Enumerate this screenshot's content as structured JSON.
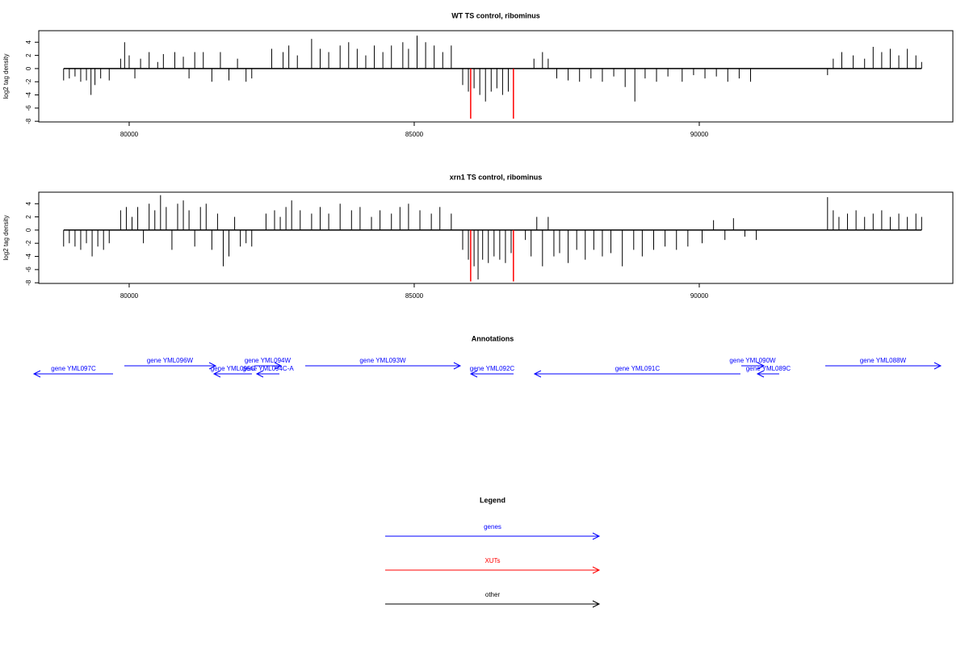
{
  "chart_data": [
    {
      "type": "bar",
      "title": "WT TS control, ribominus",
      "ylabel": "log2 tag density",
      "color": "#000000",
      "xlim": [
        78414,
        94448
      ],
      "ylim": [
        -8.1,
        5.75
      ],
      "xticks": [
        80000,
        85000,
        90000
      ],
      "yticks": [
        -8,
        -6,
        -4,
        -2,
        0,
        2,
        4
      ],
      "x": [
        78850,
        78950,
        79050,
        79150,
        79250,
        79330,
        79400,
        79500,
        79650,
        79850,
        79920,
        80000,
        80100,
        80200,
        80350,
        80500,
        80600,
        80800,
        80950,
        81050,
        81150,
        81300,
        81450,
        81600,
        81750,
        81900,
        82050,
        82150,
        82500,
        82700,
        82800,
        82950,
        83200,
        83350,
        83500,
        83700,
        83850,
        84000,
        84150,
        84300,
        84450,
        84600,
        84800,
        84900,
        85050,
        85200,
        85350,
        85500,
        85650,
        85850,
        85950,
        86050,
        86150,
        86250,
        86350,
        86450,
        86550,
        86650,
        87100,
        87250,
        87350,
        87500,
        87700,
        87900,
        88100,
        88300,
        88500,
        88700,
        88870,
        89050,
        89250,
        89450,
        89700,
        89900,
        90100,
        90300,
        90500,
        90700,
        90900,
        92250,
        92350,
        92500,
        92700,
        92900,
        93050,
        93200,
        93350,
        93500,
        93650,
        93800,
        93900
      ],
      "values": [
        -1.8,
        -1.5,
        -1.2,
        -2,
        -1.8,
        -4,
        -2.5,
        -1.5,
        -1.8,
        1.5,
        4,
        2,
        -1.5,
        1.5,
        2.5,
        1,
        2.2,
        2.5,
        1.8,
        -1.5,
        2.5,
        2.5,
        -2,
        2.5,
        -1.8,
        1.5,
        -2,
        -1.5,
        3,
        2.5,
        3.5,
        2,
        4.5,
        3,
        2.5,
        3.5,
        4,
        3,
        2,
        3.5,
        2.5,
        3.5,
        4,
        3,
        5,
        4,
        3.5,
        2.5,
        3.5,
        -2.5,
        -3.5,
        -3,
        -4,
        -5,
        -3.5,
        -3,
        -4,
        -3.5,
        1.5,
        2.5,
        1.5,
        -1.5,
        -1.8,
        -2,
        -1.5,
        -2,
        -1.2,
        -2.8,
        -5,
        -1.5,
        -2,
        -1.2,
        -2,
        -1,
        -1.5,
        -1.2,
        -2,
        -1.5,
        -2,
        -1,
        1.5,
        2.5,
        2,
        1.5,
        3.3,
        2.5,
        3,
        2,
        3,
        2,
        1
      ],
      "highlight": {
        "color": "#ff0000",
        "x": [
          85990,
          86740
        ],
        "values": [
          -7.6,
          -7.6
        ]
      }
    },
    {
      "type": "bar",
      "title": "xrn1 TS control, ribominus",
      "ylabel": "log2 tag density",
      "color": "#000000",
      "xlim": [
        78414,
        94448
      ],
      "ylim": [
        -8.1,
        5.75
      ],
      "xticks": [
        80000,
        85000,
        90000
      ],
      "yticks": [
        -8,
        -6,
        -4,
        -2,
        0,
        2,
        4
      ],
      "x": [
        78850,
        78950,
        79050,
        79150,
        79250,
        79350,
        79450,
        79550,
        79650,
        79850,
        79950,
        80050,
        80150,
        80250,
        80350,
        80450,
        80550,
        80650,
        80750,
        80850,
        80950,
        81050,
        81150,
        81250,
        81350,
        81450,
        81550,
        81650,
        81750,
        81850,
        81950,
        82050,
        82150,
        82400,
        82550,
        82650,
        82750,
        82850,
        83000,
        83200,
        83350,
        83500,
        83700,
        83900,
        84050,
        84250,
        84400,
        84600,
        84750,
        84900,
        85100,
        85300,
        85450,
        85650,
        85850,
        85950,
        86050,
        86120,
        86200,
        86300,
        86400,
        86500,
        86600,
        86700,
        86950,
        87050,
        87150,
        87250,
        87350,
        87450,
        87550,
        87700,
        87850,
        88000,
        88150,
        88300,
        88450,
        88650,
        88850,
        89000,
        89200,
        89400,
        89600,
        89800,
        90050,
        90250,
        90450,
        90600,
        90800,
        91000,
        92250,
        92350,
        92450,
        92600,
        92750,
        92900,
        93050,
        93200,
        93350,
        93500,
        93650,
        93800,
        93900
      ],
      "values": [
        -2.5,
        -2,
        -2.5,
        -3,
        -2,
        -4,
        -2.5,
        -3,
        -2,
        3,
        3.5,
        2,
        3.5,
        -2,
        4,
        3,
        5.3,
        3.5,
        -3,
        4,
        4.5,
        3,
        -2.5,
        3.5,
        4,
        -3,
        2.5,
        -5.5,
        -4,
        2,
        -2.5,
        -2,
        -2.5,
        2.5,
        3,
        2,
        3.5,
        4.5,
        3,
        2.5,
        3.5,
        2.5,
        4,
        3,
        3.5,
        2,
        3,
        2.5,
        3.5,
        4,
        3,
        2.5,
        3.5,
        2.5,
        -3,
        -4.5,
        -5.5,
        -7.5,
        -4.5,
        -5,
        -4,
        -4.5,
        -5,
        -3.5,
        -1.5,
        -4,
        2,
        -5.5,
        2,
        -4,
        -3.5,
        -5,
        -3,
        -4.5,
        -3,
        -4,
        -3.5,
        -5.5,
        -3,
        -4,
        -3,
        -2.5,
        -3,
        -2.5,
        -2,
        1.5,
        -1.5,
        1.8,
        -1,
        -1.5,
        5,
        3,
        2,
        2.5,
        3,
        2,
        2.5,
        3,
        2,
        2.5,
        2,
        2.5,
        2
      ],
      "highlight": {
        "color": "#ff0000",
        "x": [
          85990,
          86740
        ],
        "values": [
          -7.8,
          -7.8
        ]
      }
    }
  ],
  "annotations": {
    "title": "Annotations",
    "color": "#0000ff",
    "genes": [
      {
        "label": "gene YML097C",
        "start": 79717,
        "end": 78329
      },
      {
        "label": "gene YML096W",
        "start": 79915,
        "end": 81516
      },
      {
        "label": "gene YML095C",
        "start": 82153,
        "end": 81487
      },
      {
        "label": "gene YML094W",
        "start": 82195,
        "end": 82663
      },
      {
        "label": "gene YML094C-A",
        "start": 82635,
        "end": 82238
      },
      {
        "label": "gene YML093W",
        "start": 83088,
        "end": 85807
      },
      {
        "label": "gene YML092C",
        "start": 86742,
        "end": 85992
      },
      {
        "label": "gene YML091C",
        "start": 90722,
        "end": 87110
      },
      {
        "label": "gene YML090W",
        "start": 90737,
        "end": 91133
      },
      {
        "label": "gene YML089C",
        "start": 91402,
        "end": 91020
      },
      {
        "label": "gene YML088W",
        "start": 92210,
        "end": 94235
      }
    ]
  },
  "legend": {
    "title": "Legend",
    "items": [
      {
        "label": "genes",
        "color": "#0000ff"
      },
      {
        "label": "XUTs",
        "color": "#ff0000"
      },
      {
        "label": "other",
        "color": "#000000"
      }
    ]
  }
}
